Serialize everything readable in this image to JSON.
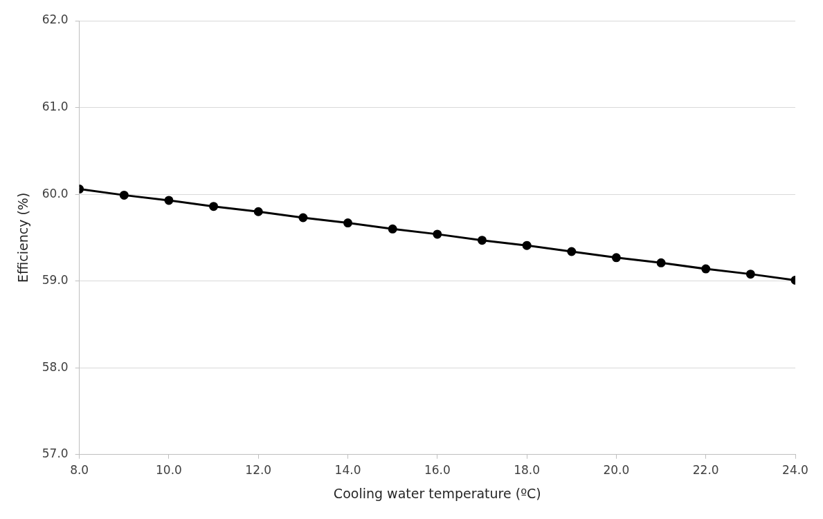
{
  "chart_data": {
    "type": "line",
    "xlabel": "Cooling water temperature (ºC)",
    "ylabel": "Efficiency (%)",
    "x": [
      8,
      9,
      10,
      11,
      12,
      13,
      14,
      15,
      16,
      17,
      18,
      19,
      20,
      21,
      22,
      23,
      24
    ],
    "series": [
      {
        "color": "#000000",
        "values": [
          60.06,
          59.99,
          59.93,
          59.86,
          59.8,
          59.73,
          59.67,
          59.6,
          59.54,
          59.47,
          59.41,
          59.34,
          59.27,
          59.21,
          59.14,
          59.08,
          59.01
        ]
      }
    ],
    "xlim": [
      8,
      24
    ],
    "xticks": [
      {
        "value": 8,
        "label": "8.0"
      },
      {
        "value": 10,
        "label": "10.0"
      },
      {
        "value": 12,
        "label": "12.0"
      },
      {
        "value": 14,
        "label": "14.0"
      },
      {
        "value": 16,
        "label": "16.0"
      },
      {
        "value": 18,
        "label": "18.0"
      },
      {
        "value": 20,
        "label": "20.0"
      },
      {
        "value": 22,
        "label": "22.0"
      },
      {
        "value": 24,
        "label": "24.0"
      }
    ],
    "ylim": [
      57,
      62
    ],
    "yticks": [
      {
        "value": 57,
        "label": "57.0"
      },
      {
        "value": 58,
        "label": "58.0"
      },
      {
        "value": 59,
        "label": "59.0"
      },
      {
        "value": 60,
        "label": "60.0"
      },
      {
        "value": 61,
        "label": "61.0"
      },
      {
        "value": 62,
        "label": "62.0"
      }
    ],
    "grid": "y",
    "legend": false,
    "marker": "circle",
    "line_style": "solid"
  }
}
